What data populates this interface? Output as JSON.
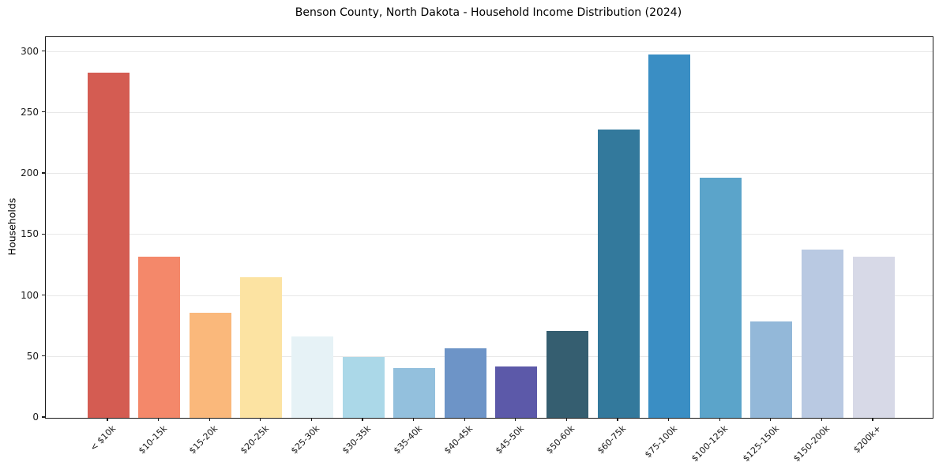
{
  "chart_data": {
    "type": "bar",
    "title": "Benson County, North Dakota - Household Income Distribution (2024)",
    "xlabel": "",
    "ylabel": "Households",
    "categories": [
      "< $10k",
      "$10-15k",
      "$15-20k",
      "$20-25k",
      "$25-30k",
      "$30-35k",
      "$35-40k",
      "$40-45k",
      "$45-50k",
      "$50-60k",
      "$60-75k",
      "$75-100k",
      "$100-125k",
      "$125-150k",
      "$150-200k",
      "$200k+"
    ],
    "values": [
      283,
      132,
      86,
      115,
      67,
      50,
      41,
      57,
      42,
      71,
      236,
      298,
      197,
      79,
      138,
      132
    ],
    "bar_colors": [
      "#d45c52",
      "#f4886a",
      "#fab87b",
      "#fce3a2",
      "#e6f2f6",
      "#abd8e8",
      "#93c0dd",
      "#6d94c7",
      "#5c59a9",
      "#355e70",
      "#33799c",
      "#3a8ec4",
      "#5ba4ca",
      "#93b8d9",
      "#b9c9e2",
      "#d7d9e7"
    ],
    "yticks": [
      0,
      50,
      100,
      150,
      200,
      250,
      300
    ],
    "ylim": [
      0,
      312
    ],
    "grid": "horizontal",
    "legend": null,
    "colors": {
      "background": "#ffffff",
      "gridline": "#e8e8e8",
      "spine": "#1a1a1a",
      "text": "#000000"
    }
  }
}
